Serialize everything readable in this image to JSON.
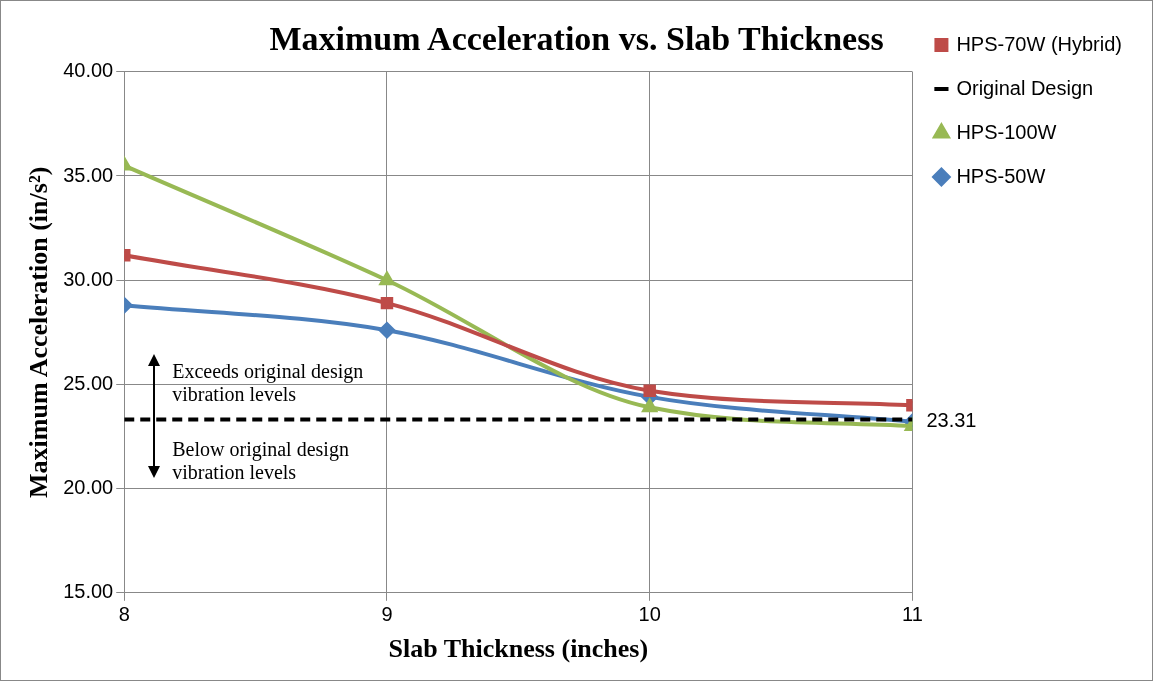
{
  "chart_data": {
    "type": "line",
    "title": "Maximum Acceleration vs. Slab Thickness",
    "xlabel": "Slab Thickness (inches)",
    "ylabel": "Maximum Acceleration (in/s²)",
    "x": [
      8,
      9,
      10,
      11
    ],
    "xlim": [
      8,
      11
    ],
    "xticks": [
      8,
      9,
      10,
      11
    ],
    "ylim": [
      15,
      40
    ],
    "yticks": [
      {
        "value": 15,
        "label": "15.00"
      },
      {
        "value": 20,
        "label": "20.00"
      },
      {
        "value": 25,
        "label": "25.00"
      },
      {
        "value": 30,
        "label": "30.00"
      },
      {
        "value": 35,
        "label": "35.00"
      },
      {
        "value": 40,
        "label": "40.00"
      }
    ],
    "grid": true,
    "legend": "right",
    "series": [
      {
        "name": "HPS-50W",
        "color": "#4a7ebb",
        "marker": "diamond",
        "values": [
          28.8,
          27.6,
          24.4,
          23.2
        ]
      },
      {
        "name": "HPS-70W (Hybrid)",
        "color": "#be4b48",
        "marker": "square",
        "values": [
          31.2,
          28.9,
          24.7,
          24.0
        ]
      },
      {
        "name": "HPS-100W",
        "color": "#98b954",
        "marker": "triangle",
        "values": [
          35.5,
          30.0,
          23.9,
          23.0
        ]
      },
      {
        "name": "Original Design",
        "color": "#000000",
        "marker": "none",
        "line_style": "dashed",
        "values": [
          23.31,
          23.31,
          23.31,
          23.31
        ],
        "value_labels": [
          null,
          null,
          null,
          "23.31"
        ]
      }
    ],
    "annotations": [
      "Exceeds original design vibration levels",
      "Below original design vibration levels"
    ]
  }
}
